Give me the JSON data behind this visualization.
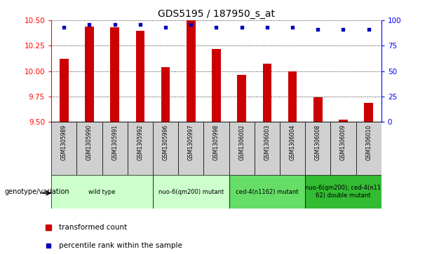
{
  "title": "GDS5195 / 187950_s_at",
  "samples": [
    "GSM1305989",
    "GSM1305990",
    "GSM1305991",
    "GSM1305992",
    "GSM1305996",
    "GSM1305997",
    "GSM1305998",
    "GSM1306002",
    "GSM1306003",
    "GSM1306004",
    "GSM1306008",
    "GSM1306009",
    "GSM1306010"
  ],
  "transformed_count": [
    10.12,
    10.44,
    10.43,
    10.4,
    10.04,
    10.5,
    10.22,
    9.96,
    10.07,
    10.0,
    9.74,
    9.52,
    9.69
  ],
  "percentile": [
    93,
    96,
    96,
    96,
    93,
    96,
    93,
    93,
    93,
    93,
    91,
    91,
    91
  ],
  "ylim_left": [
    9.5,
    10.5
  ],
  "ylim_right": [
    0,
    100
  ],
  "yticks_left": [
    9.5,
    9.75,
    10.0,
    10.25,
    10.5
  ],
  "yticks_right": [
    0,
    25,
    50,
    75,
    100
  ],
  "bar_color": "#cc0000",
  "dot_color": "#0000bb",
  "background_color": "#ffffff",
  "tick_area_color": "#d0d0d0",
  "groups": [
    {
      "label": "wild type",
      "start": 0,
      "end": 4,
      "color": "#ccffcc"
    },
    {
      "label": "nuo-6(qm200) mutant",
      "start": 4,
      "end": 7,
      "color": "#ccffcc"
    },
    {
      "label": "ced-4(n1162) mutant",
      "start": 7,
      "end": 10,
      "color": "#66dd66"
    },
    {
      "label": "nuo-6(qm200); ced-4(n11\n62) double mutant",
      "start": 10,
      "end": 13,
      "color": "#33bb33"
    }
  ],
  "legend_label_bar": "transformed count",
  "legend_label_dot": "percentile rank within the sample",
  "xlabel_genotype": "genotype/variation",
  "bar_width": 0.35
}
